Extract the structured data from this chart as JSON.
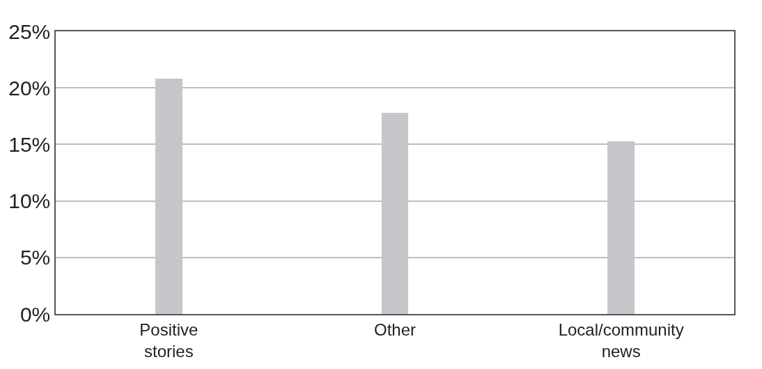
{
  "chart_data": {
    "type": "bar",
    "categories": [
      "Positive stories",
      "Other",
      "Local/community news"
    ],
    "values": [
      20.8,
      17.8,
      15.3
    ],
    "color": "#c4c6c9",
    "ylim": [
      0,
      25
    ],
    "yticks": [
      {
        "value": 0,
        "label": "0%"
      },
      {
        "value": 5,
        "label": "5%"
      },
      {
        "value": 10,
        "label": "10%"
      },
      {
        "value": 15,
        "label": "15%"
      },
      {
        "value": 20,
        "label": "20%"
      },
      {
        "value": 25,
        "label": "25%"
      }
    ],
    "grid": "y"
  }
}
